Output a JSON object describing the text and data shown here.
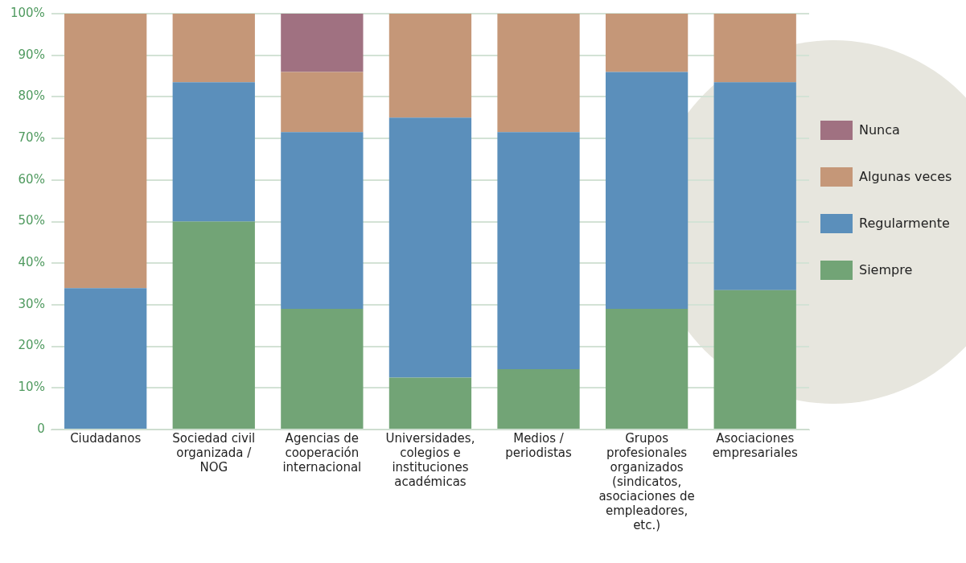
{
  "chart_data": {
    "type": "bar",
    "stacked": true,
    "categories": [
      "Ciudadanos",
      "Sociedad civil organizada / NOG",
      "Agencias de cooperación internacional",
      "Universidades, colegios e instituciones académicas",
      "Medios / periodistas",
      "Grupos profesionales organizados (sindicatos, asociaciones de empleadores, etc.)",
      "Asociaciones empresariales"
    ],
    "series": [
      {
        "name": "Siempre",
        "color": "#72a476",
        "values": [
          0,
          50,
          29,
          12.5,
          14.5,
          29,
          33.5
        ]
      },
      {
        "name": "Regularmente",
        "color": "#5b8fbb",
        "values": [
          34,
          33.5,
          42.5,
          62.5,
          57,
          57,
          50
        ]
      },
      {
        "name": "Algunas veces",
        "color": "#c59778",
        "values": [
          66,
          16.5,
          14.5,
          25,
          28.5,
          14,
          16.5
        ]
      },
      {
        "name": "Nunca",
        "color": "#a07181",
        "values": [
          0,
          0,
          14,
          0,
          0,
          0,
          0
        ]
      }
    ],
    "ylim": [
      0,
      100
    ],
    "yticks": [
      0,
      {
        "value": 10,
        "label": "10%"
      },
      {
        "value": 20,
        "label": "20%"
      },
      {
        "value": 30,
        "label": "30%"
      },
      {
        "value": 40,
        "label": "40%"
      },
      {
        "value": 50,
        "label": "50%"
      },
      {
        "value": 60,
        "label": "60%"
      },
      {
        "value": 70,
        "label": "70%"
      },
      {
        "value": 80,
        "label": "80%"
      },
      {
        "value": 90,
        "label": "90%"
      },
      {
        "value": 100,
        "label": "100%"
      }
    ],
    "grid": "y",
    "legend": "right"
  }
}
